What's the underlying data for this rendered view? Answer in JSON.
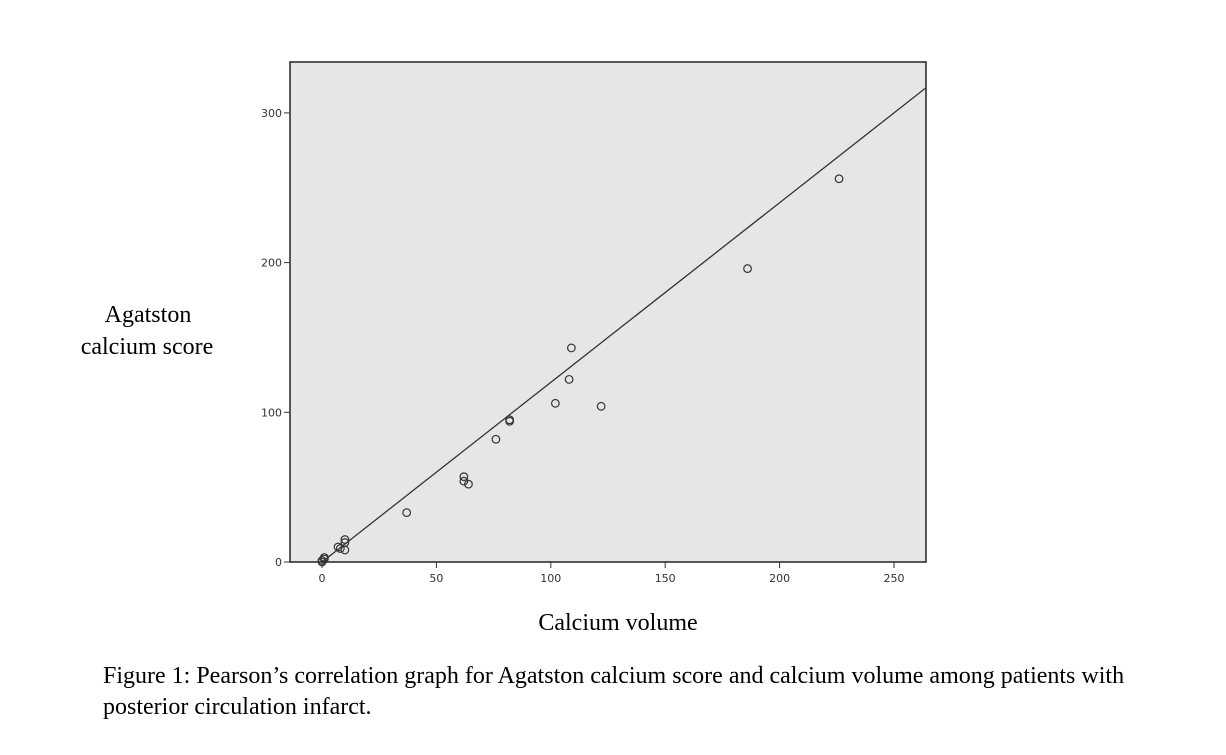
{
  "chart_data": {
    "type": "scatter",
    "title": "",
    "xlabel": "Calcium volume",
    "ylabel_lines": [
      "Agatston",
      "calcium score"
    ],
    "xlim": [
      -14,
      264
    ],
    "ylim": [
      0,
      334
    ],
    "xticks": [
      0,
      50,
      100,
      150,
      200,
      250
    ],
    "yticks": [
      0,
      100,
      200,
      300
    ],
    "grid": false,
    "series": [
      {
        "name": "patients",
        "points": [
          [
            0,
            0
          ],
          [
            0,
            1
          ],
          [
            1,
            2
          ],
          [
            1,
            3
          ],
          [
            7,
            10
          ],
          [
            8,
            9
          ],
          [
            10,
            8
          ],
          [
            10,
            13
          ],
          [
            10,
            15
          ],
          [
            37,
            33
          ],
          [
            62,
            57
          ],
          [
            62,
            54
          ],
          [
            64,
            52
          ],
          [
            76,
            82
          ],
          [
            82,
            95
          ],
          [
            82,
            94
          ],
          [
            102,
            106
          ],
          [
            108,
            122
          ],
          [
            109,
            143
          ],
          [
            122,
            104
          ],
          [
            186,
            196
          ],
          [
            226,
            256
          ]
        ]
      }
    ],
    "fit_line": {
      "slope": 1.2,
      "intercept": 0,
      "x_range": [
        0,
        264
      ]
    },
    "colors": {
      "plot_background": "#e6e6e6",
      "marker": "#333333",
      "line": "#333333"
    }
  },
  "caption": {
    "text": "Figure 1: Pearson’s correlation graph for Agatston calcium score and calcium volume among patients with posterior circulation infarct."
  }
}
